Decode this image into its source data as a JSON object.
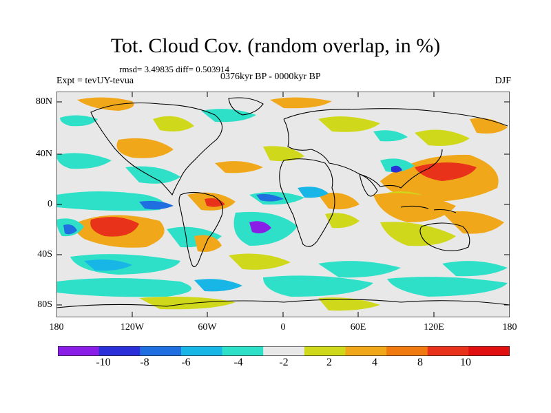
{
  "title": "Tot. Cloud Cov. (random overlap, in %)",
  "stats": "rmsd= 3.49835 diff= 0.503914",
  "experiment": "Expt = tevUY-tevua",
  "period": "0376kyr BP - 0000kyr BP",
  "season": "DJF",
  "lat_ticks": [
    "80N",
    "40N",
    "0",
    "40S",
    "80S"
  ],
  "lon_ticks": [
    "180",
    "120W",
    "60W",
    "0",
    "60E",
    "120E",
    "180"
  ],
  "colorbar": {
    "labels": [
      "-10",
      "-8",
      "-6",
      "-4",
      "-2",
      "2",
      "4",
      "8",
      "10"
    ],
    "colors": [
      "#8a1ee6",
      "#2a2fd8",
      "#1f6fe0",
      "#18b6e6",
      "#2fe0c8",
      "#e8e8e8",
      "#cfd81a",
      "#f0a81a",
      "#f07a10",
      "#e8331a",
      "#e01010"
    ]
  },
  "palette": {
    "neutral": "#e8e8e8",
    "teal": "#2fe0c8",
    "cyan": "#18b6e6",
    "blue": "#1f6fe0",
    "darkblue": "#2a2fd8",
    "violet": "#8a1ee6",
    "yellow": "#cfd81a",
    "orange": "#f0a81a",
    "darkorange": "#f07a10",
    "red": "#e8331a"
  }
}
